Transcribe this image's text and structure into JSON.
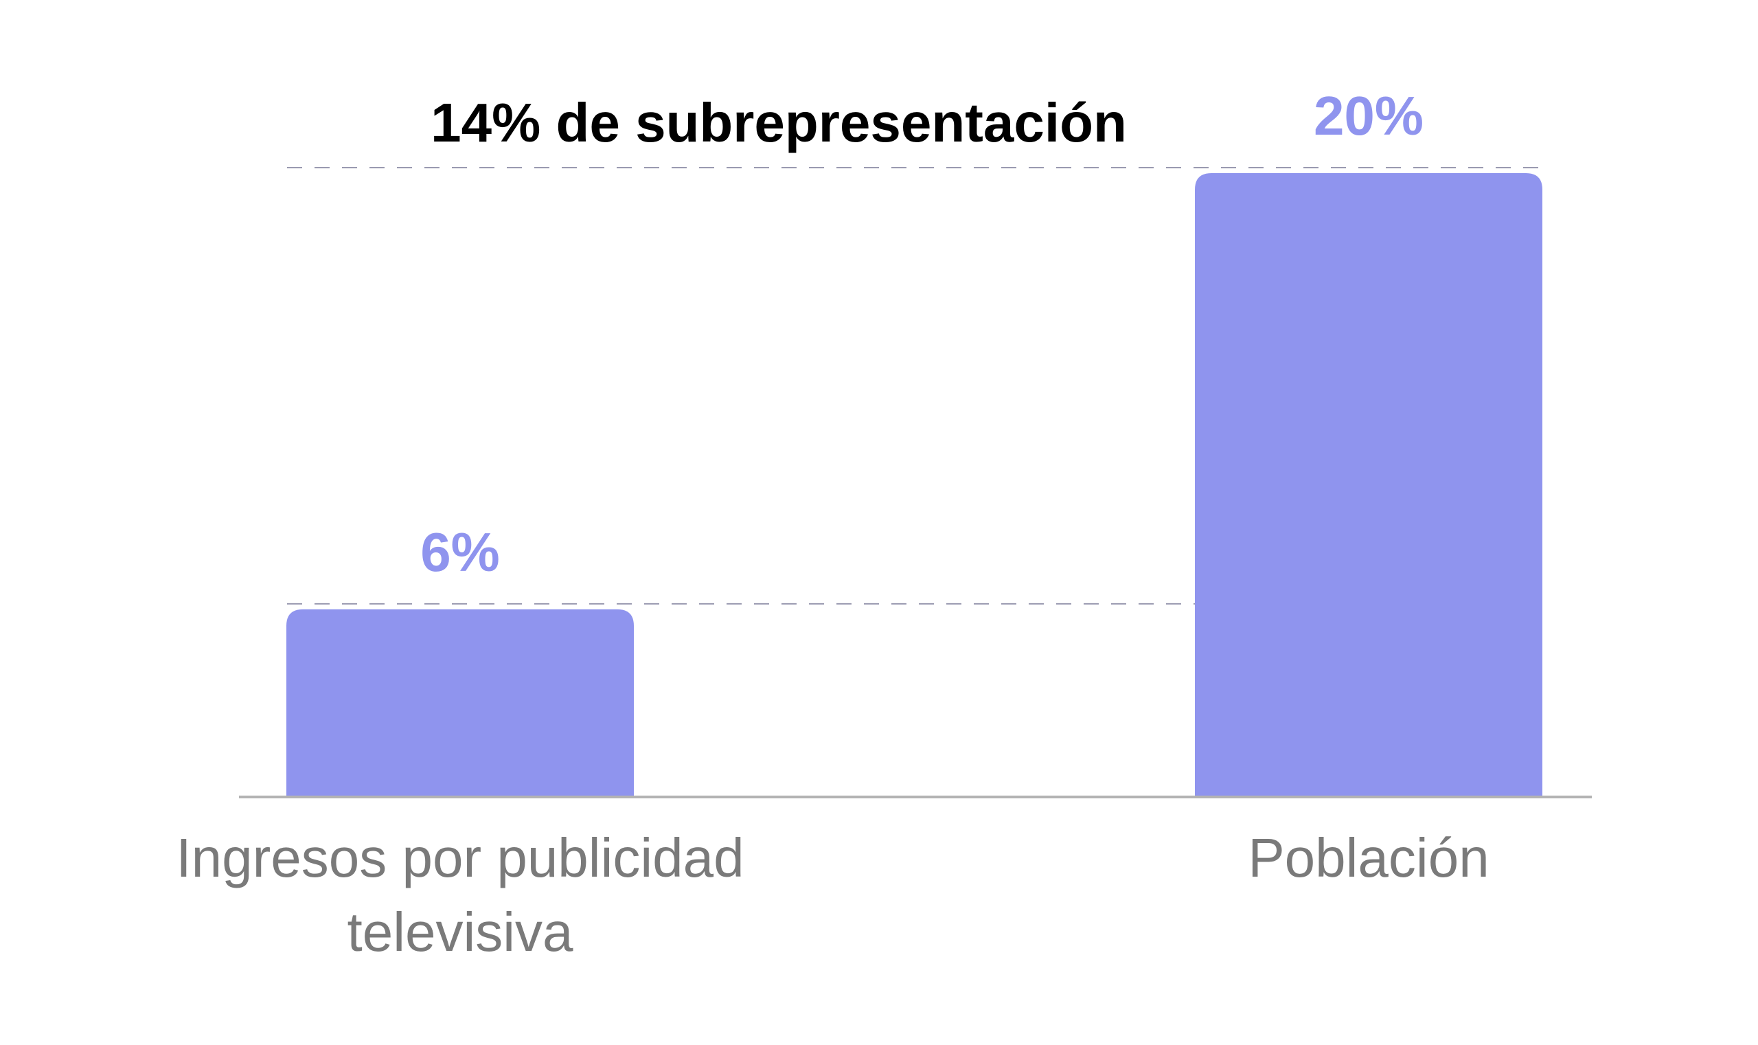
{
  "chart_data": {
    "type": "bar",
    "title": "",
    "xlabel": "",
    "ylabel": "",
    "categories": [
      [
        "Ingresos por publicidad",
        "televisiva"
      ],
      [
        "Población"
      ]
    ],
    "values": [
      6,
      20
    ],
    "value_labels": [
      "6%",
      "20%"
    ],
    "ylim": [
      0,
      20
    ],
    "grid": false,
    "reference_lines": [
      6,
      20
    ],
    "annotation": "14% de subrepresentación",
    "colors": {
      "bar": "#8f94ee",
      "value_label": "#8f94ee",
      "annotation": "#000000",
      "category_label": "#7a7a7a",
      "baseline": "#b3b3b3",
      "reference_line": "#9a9ab0"
    }
  }
}
